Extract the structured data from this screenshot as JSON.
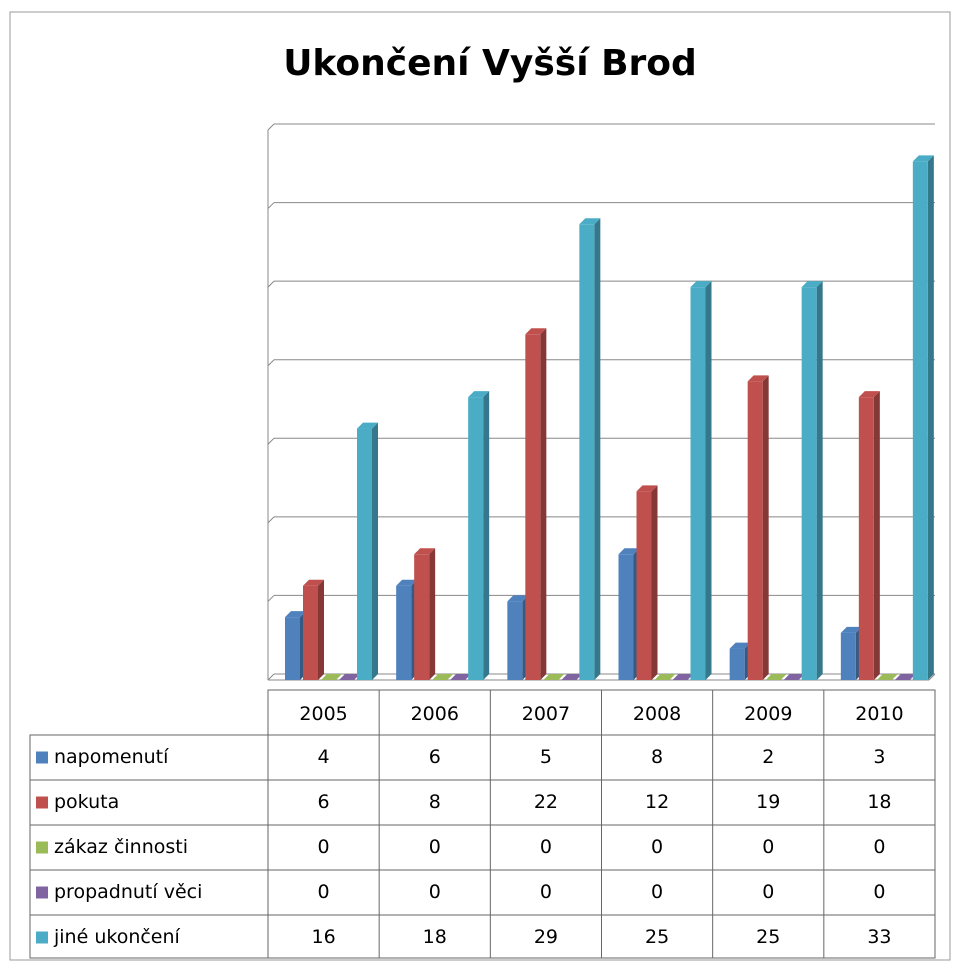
{
  "chart_data": {
    "type": "bar3d",
    "title": "Ukončení Vyšší Brod",
    "categories": [
      "2005",
      "2006",
      "2007",
      "2008",
      "2009",
      "2010"
    ],
    "series": [
      {
        "name": "napomenutí",
        "color": "#4f81bd",
        "values": [
          4,
          6,
          5,
          8,
          2,
          3
        ]
      },
      {
        "name": "pokuta",
        "color": "#c0504d",
        "values": [
          6,
          8,
          22,
          12,
          19,
          18
        ]
      },
      {
        "name": "zákaz činnosti",
        "color": "#9bbb59",
        "values": [
          0,
          0,
          0,
          0,
          0,
          0
        ]
      },
      {
        "name": "propadnutí věci",
        "color": "#8064a2",
        "values": [
          0,
          0,
          0,
          0,
          0,
          0
        ]
      },
      {
        "name": "jiné ukončení",
        "color": "#4bacc6",
        "values": [
          16,
          18,
          29,
          25,
          25,
          33
        ]
      }
    ],
    "ylim": [
      0,
      35
    ],
    "yticks": [
      0,
      5,
      10,
      15,
      20,
      25,
      30,
      35
    ],
    "grid": true
  }
}
